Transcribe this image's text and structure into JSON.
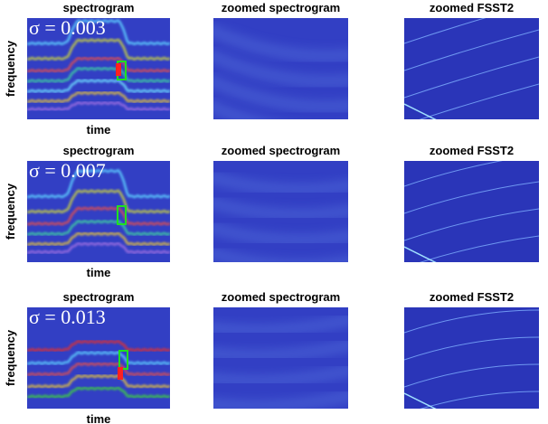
{
  "rows": [
    {
      "sigma": "σ = 0.003",
      "ylabel": "frequency",
      "xlabel": "time",
      "panels": [
        {
          "title": "spectrogram"
        },
        {
          "title": "zoomed spectrogram"
        },
        {
          "title": "zoomed FSST2"
        }
      ]
    },
    {
      "sigma": "σ = 0.007",
      "ylabel": "frequency",
      "xlabel": "time",
      "panels": [
        {
          "title": "spectrogram"
        },
        {
          "title": "zoomed spectrogram"
        },
        {
          "title": "zoomed FSST2"
        }
      ]
    },
    {
      "sigma": "σ = 0.013",
      "ylabel": "frequency",
      "xlabel": "time",
      "panels": [
        {
          "title": "spectrogram"
        },
        {
          "title": "zoomed spectrogram"
        },
        {
          "title": "zoomed FSST2"
        }
      ]
    }
  ]
}
